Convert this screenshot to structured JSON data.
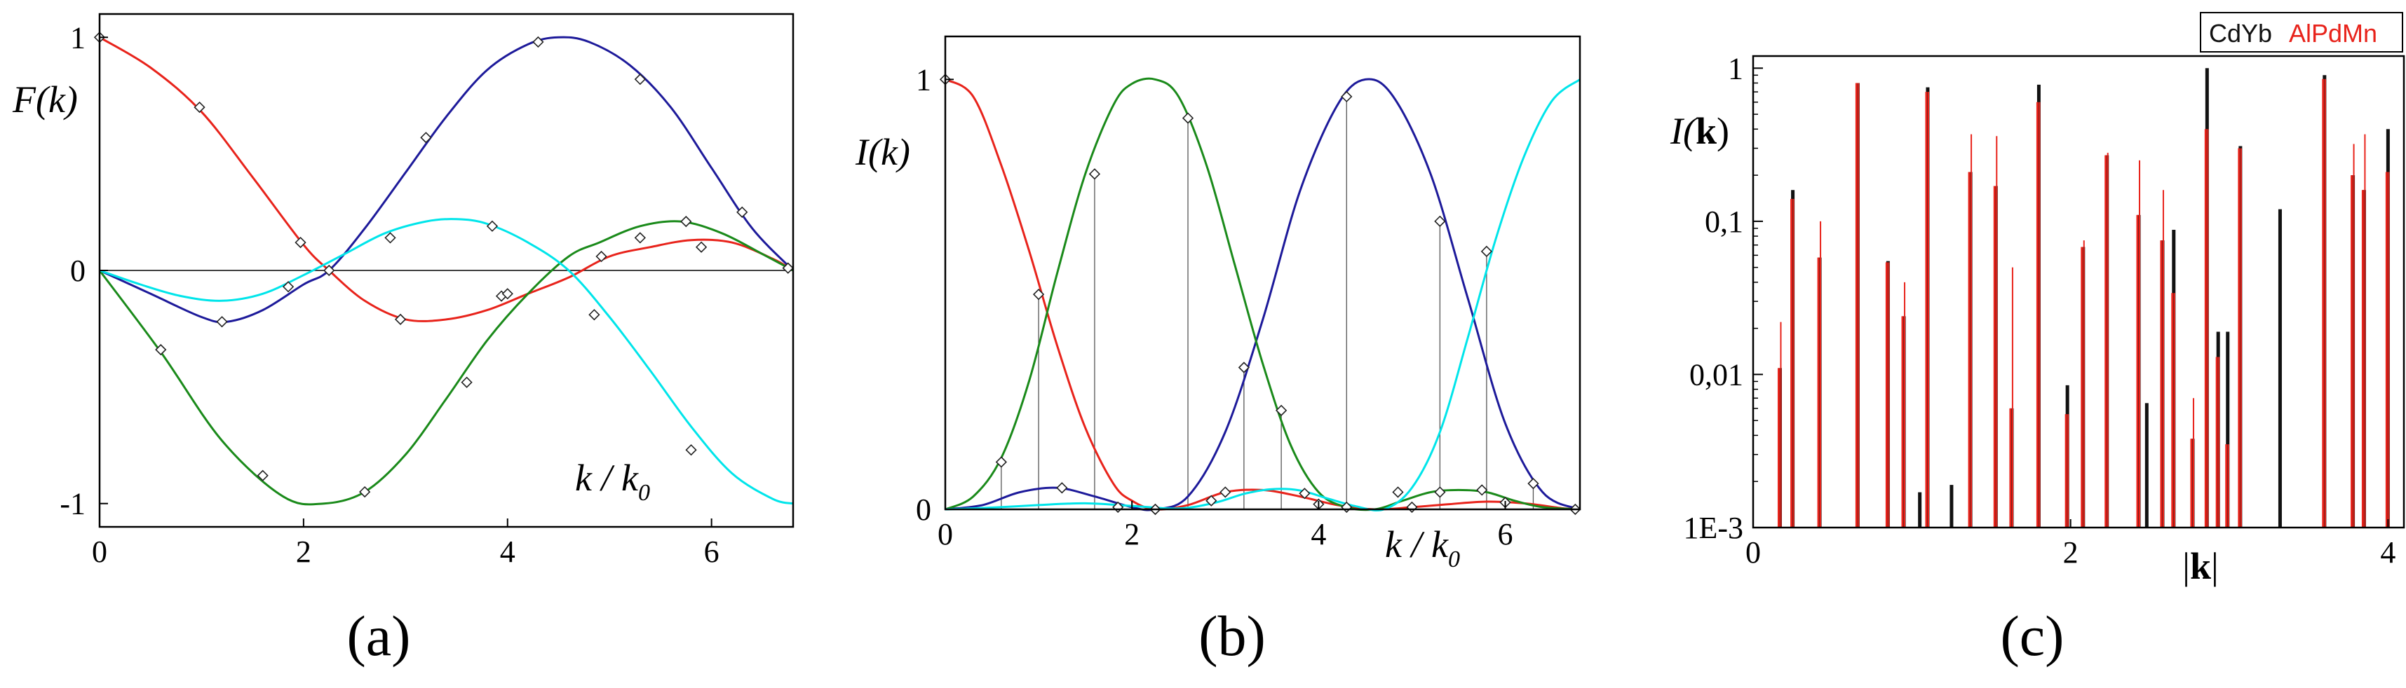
{
  "chart_data": [
    {
      "type": "line",
      "panel_label": "(a)",
      "ylabel": "F(k)",
      "xlabel": "k / k0",
      "xlim": [
        0,
        6.8
      ],
      "ylim": [
        -1.1,
        1.1
      ],
      "x_ticks": [
        "0",
        "2",
        "4",
        "6"
      ],
      "y_ticks": [
        "1",
        "0",
        "-1"
      ],
      "x_tick_values": [
        0,
        2,
        4,
        6
      ],
      "y_tick_values": [
        1,
        0,
        -1
      ],
      "grid": false,
      "zero_line": true,
      "colors": [
        "#e8231b",
        "#1d1a9a",
        "#1a8a1a",
        "#00e5ea"
      ],
      "series": [
        {
          "color": "#e8231b",
          "x": [
            0,
            0.5,
            1.0,
            1.5,
            2.0,
            2.25,
            2.6,
            3.0,
            3.4,
            3.8,
            4.2,
            4.6,
            5.0,
            5.4,
            5.8,
            6.2,
            6.6,
            6.8
          ],
          "y": [
            1.0,
            0.87,
            0.68,
            0.4,
            0.11,
            0.0,
            -0.13,
            -0.21,
            -0.21,
            -0.17,
            -0.1,
            -0.03,
            0.06,
            0.1,
            0.13,
            0.12,
            0.05,
            0.0
          ],
          "markers_x": [
            0,
            0.98,
            1.97,
            2.95,
            3.94,
            4.92,
            5.9,
            6.75
          ],
          "markers_y": [
            1.0,
            0.7,
            0.12,
            -0.21,
            -0.11,
            0.06,
            0.1,
            0.01
          ]
        },
        {
          "color": "#1d1a9a",
          "x": [
            0,
            0.5,
            1.0,
            1.25,
            1.6,
            2.0,
            2.25,
            2.6,
            3.0,
            3.4,
            3.8,
            4.2,
            4.5,
            4.8,
            5.2,
            5.6,
            6.0,
            6.4,
            6.8
          ],
          "y": [
            0.0,
            -0.1,
            -0.2,
            -0.22,
            -0.17,
            -0.06,
            0.0,
            0.18,
            0.42,
            0.66,
            0.86,
            0.97,
            1.0,
            0.98,
            0.88,
            0.7,
            0.44,
            0.18,
            0.0
          ],
          "markers_x": [
            1.2,
            2.25,
            3.2,
            4.3,
            5.3,
            6.3
          ],
          "markers_y": [
            -0.22,
            0.0,
            0.57,
            0.98,
            0.82,
            0.25
          ]
        },
        {
          "color": "#1a8a1a",
          "x": [
            0,
            0.6,
            1.2,
            1.8,
            2.2,
            2.6,
            3.0,
            3.4,
            3.8,
            4.2,
            4.6,
            4.9,
            5.3,
            5.7,
            6.1,
            6.5,
            6.8
          ],
          "y": [
            0.0,
            -0.35,
            -0.73,
            -0.97,
            -1.0,
            -0.95,
            -0.79,
            -0.55,
            -0.3,
            -0.1,
            0.06,
            0.12,
            0.19,
            0.21,
            0.16,
            0.07,
            0.0
          ],
          "markers_x": [
            0.6,
            1.6,
            2.6,
            3.6,
            4.0,
            5.3,
            5.75,
            6.75
          ],
          "markers_y": [
            -0.34,
            -0.88,
            -0.95,
            -0.48,
            -0.1,
            0.14,
            0.21,
            0.01
          ]
        },
        {
          "color": "#00e5ea",
          "x": [
            0,
            0.4,
            0.8,
            1.2,
            1.6,
            2.0,
            2.4,
            2.8,
            3.2,
            3.5,
            3.8,
            4.2,
            4.6,
            5.0,
            5.4,
            5.8,
            6.2,
            6.6,
            6.8
          ],
          "y": [
            0.0,
            -0.06,
            -0.11,
            -0.13,
            -0.1,
            -0.02,
            0.07,
            0.16,
            0.21,
            0.22,
            0.2,
            0.12,
            0.0,
            -0.2,
            -0.43,
            -0.67,
            -0.87,
            -0.98,
            -1.0
          ],
          "markers_x": [
            1.85,
            2.85,
            3.85,
            4.85,
            5.8
          ],
          "markers_y": [
            -0.07,
            0.14,
            0.19,
            -0.19,
            -0.77
          ]
        }
      ]
    },
    {
      "type": "line",
      "panel_label": "(b)",
      "ylabel": "I(k)",
      "xlabel": "k / k0",
      "xlim": [
        0,
        6.8
      ],
      "ylim": [
        0,
        1.1
      ],
      "x_ticks": [
        "0",
        "2",
        "4",
        "6"
      ],
      "y_ticks": [
        "1",
        "0"
      ],
      "x_tick_values": [
        0,
        2,
        4,
        6
      ],
      "y_tick_values": [
        1,
        0
      ],
      "grid": false,
      "colors": [
        "#e8231b",
        "#1d1a9a",
        "#1a8a1a",
        "#00e5ea"
      ],
      "series": [
        {
          "color": "#e8231b",
          "x": [
            0,
            0.3,
            0.6,
            0.9,
            1.2,
            1.5,
            1.8,
            2.0,
            2.25,
            2.6,
            3.0,
            3.4,
            3.8,
            4.2,
            4.6,
            5.0,
            5.4,
            5.8,
            6.2,
            6.6,
            6.8
          ],
          "y": [
            1.0,
            0.96,
            0.8,
            0.6,
            0.38,
            0.19,
            0.06,
            0.02,
            0.0,
            0.01,
            0.04,
            0.045,
            0.03,
            0.01,
            0.0,
            0.005,
            0.012,
            0.018,
            0.014,
            0.003,
            0.0
          ],
          "markers_x": [
            0,
            1.0,
            2.25,
            3.0,
            4.0,
            5.0,
            6.0
          ],
          "markers_y": [
            1.0,
            0.5,
            0.0,
            0.04,
            0.012,
            0.005,
            0.016
          ]
        },
        {
          "color": "#1d1a9a",
          "x": [
            0,
            0.4,
            0.8,
            1.2,
            1.6,
            2.0,
            2.25,
            2.6,
            3.0,
            3.4,
            3.8,
            4.2,
            4.5,
            4.8,
            5.2,
            5.6,
            6.0,
            6.4,
            6.8
          ],
          "y": [
            0.0,
            0.01,
            0.04,
            0.05,
            0.03,
            0.005,
            0.0,
            0.03,
            0.18,
            0.44,
            0.74,
            0.94,
            1.0,
            0.96,
            0.78,
            0.49,
            0.2,
            0.04,
            0.0
          ],
          "markers_x": [
            1.25,
            2.25,
            3.2,
            4.3,
            5.3,
            6.3
          ],
          "markers_y": [
            0.05,
            0.0,
            0.33,
            0.96,
            0.67,
            0.06
          ]
        },
        {
          "color": "#1a8a1a",
          "x": [
            0,
            0.3,
            0.6,
            0.9,
            1.2,
            1.5,
            1.8,
            2.0,
            2.25,
            2.5,
            2.8,
            3.1,
            3.4,
            3.7,
            4.0,
            4.3,
            4.6,
            4.9,
            5.2,
            5.5,
            5.8,
            6.1,
            6.4,
            6.8
          ],
          "y": [
            0.0,
            0.03,
            0.12,
            0.3,
            0.55,
            0.78,
            0.94,
            0.99,
            1.0,
            0.96,
            0.8,
            0.57,
            0.34,
            0.15,
            0.04,
            0.005,
            0.0,
            0.02,
            0.04,
            0.045,
            0.04,
            0.02,
            0.005,
            0.0
          ],
          "markers_x": [
            0.6,
            1.6,
            2.6,
            3.6,
            4.3,
            5.3,
            5.75,
            6.75
          ],
          "markers_y": [
            0.11,
            0.78,
            0.91,
            0.23,
            0.005,
            0.04,
            0.045,
            0.0
          ]
        },
        {
          "color": "#00e5ea",
          "x": [
            0,
            0.5,
            1.0,
            1.5,
            2.0,
            2.5,
            2.9,
            3.2,
            3.5,
            3.8,
            4.1,
            4.4,
            4.7,
            5.0,
            5.3,
            5.6,
            5.9,
            6.2,
            6.5,
            6.8
          ],
          "y": [
            0.0,
            0.004,
            0.01,
            0.014,
            0.008,
            0.002,
            0.016,
            0.036,
            0.047,
            0.044,
            0.025,
            0.007,
            0.0,
            0.05,
            0.18,
            0.4,
            0.63,
            0.82,
            0.95,
            1.0
          ],
          "markers_x": [
            1.85,
            2.85,
            3.85,
            4.85,
            5.8
          ],
          "markers_y": [
            0.005,
            0.02,
            0.037,
            0.04,
            0.6
          ]
        }
      ],
      "drop_lines_x": [
        0.6,
        1.0,
        1.6,
        2.6,
        3.2,
        3.6,
        4.3,
        5.3,
        5.8,
        6.3
      ]
    },
    {
      "type": "bar",
      "panel_label": "(c)",
      "ylabel": "I(k)",
      "xlabel": "|k|",
      "xlim": [
        0,
        4.1
      ],
      "ylim": [
        0.001,
        1.2
      ],
      "y_scale": "log",
      "x_ticks": [
        "0",
        "2",
        "4"
      ],
      "x_tick_values": [
        0,
        2,
        4
      ],
      "y_ticks": [
        "1",
        "0,1",
        "0,01",
        "1E-3"
      ],
      "y_tick_values": [
        1,
        0.1,
        0.01,
        0.001
      ],
      "legend": {
        "position": "top-right",
        "entries": [
          {
            "label": "CdYb",
            "color": "#111111"
          },
          {
            "label": "AlPdMn",
            "color": "#e8231b"
          }
        ]
      },
      "series": [
        {
          "name": "CdYb",
          "color": "#111111",
          "x": [
            0.17,
            0.25,
            0.42,
            0.66,
            0.85,
            0.95,
            1.05,
            1.1,
            1.25,
            1.37,
            1.53,
            1.63,
            1.8,
            1.98,
            2.08,
            2.23,
            2.43,
            2.48,
            2.58,
            2.65,
            2.77,
            2.86,
            2.93,
            2.99,
            3.07,
            3.32,
            3.6,
            3.78,
            3.85,
            4.0
          ],
          "values": [
            0.011,
            0.16,
            0.058,
            0.8,
            0.055,
            0.024,
            0.0017,
            0.75,
            0.0019,
            0.21,
            0.17,
            0.006,
            0.78,
            0.0085,
            0.068,
            0.27,
            0.11,
            0.0065,
            0.075,
            0.088,
            0.0038,
            1.0,
            0.019,
            0.019,
            0.31,
            0.12,
            0.9,
            0.2,
            0.16,
            0.4
          ]
        },
        {
          "name": "AlPdMn",
          "color": "#e8231b",
          "x": [
            0.17,
            0.25,
            0.42,
            0.66,
            0.85,
            0.95,
            1.05,
            1.1,
            1.25,
            1.37,
            1.53,
            1.63,
            1.8,
            1.98,
            2.08,
            2.23,
            2.43,
            2.48,
            2.58,
            2.65,
            2.77,
            2.86,
            2.93,
            2.99,
            3.07,
            3.32,
            3.6,
            3.78,
            3.85,
            4.0
          ],
          "values": [
            0.022,
            0.14,
            0.1,
            0.8,
            0.054,
            0.04,
            0.0,
            0.7,
            0.0,
            0.37,
            0.36,
            0.05,
            0.6,
            0.0055,
            0.075,
            0.28,
            0.25,
            0.0,
            0.16,
            0.034,
            0.007,
            0.4,
            0.013,
            0.0035,
            0.3,
            0.0,
            0.85,
            0.32,
            0.37,
            0.21
          ]
        }
      ]
    }
  ]
}
